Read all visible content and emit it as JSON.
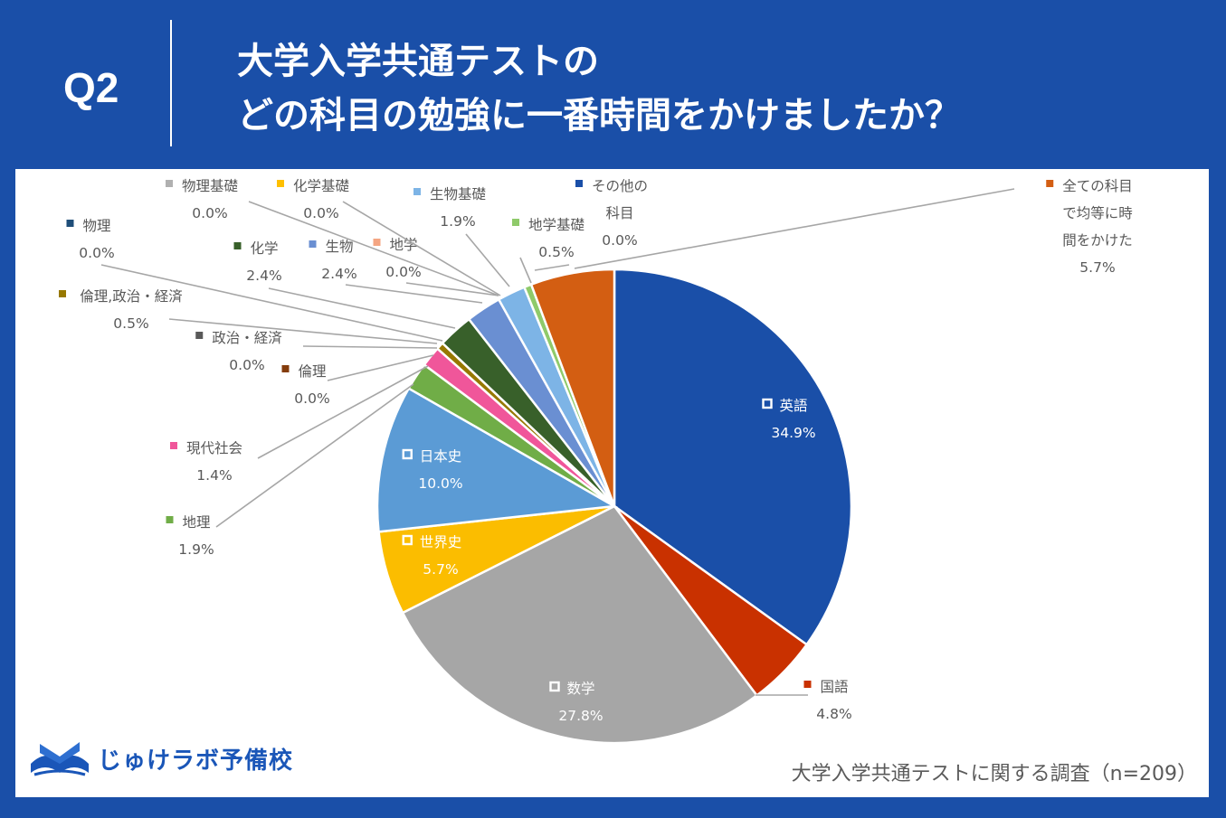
{
  "header": {
    "question_number": "Q2",
    "title_line1": "大学入学共通テストの",
    "title_line2": "どの科目の勉強に一番時間をかけましたか？"
  },
  "brand": {
    "name": "じゅけラボ予備校"
  },
  "footer": {
    "source": "大学入学共通テストに関する調査（n=209）"
  },
  "colors": {
    "background": "#1a4fa8",
    "card": "#ffffff",
    "leader_line": "#a6a6a6"
  },
  "chart_data": {
    "type": "pie",
    "title": "大学入学共通テストのどの科目の勉強に一番時間をかけましたか？",
    "n": 209,
    "unit": "%",
    "slices": [
      {
        "label": "英語",
        "value": 34.9,
        "value_label": "34.9%",
        "color": "#1a4fa8"
      },
      {
        "label": "国語",
        "value": 4.8,
        "value_label": "4.8%",
        "color": "#c93100"
      },
      {
        "label": "数学",
        "value": 27.8,
        "value_label": "27.8%",
        "color": "#a6a6a6"
      },
      {
        "label": "世界史",
        "value": 5.7,
        "value_label": "5.7%",
        "color": "#fbbd00"
      },
      {
        "label": "日本史",
        "value": 10.0,
        "value_label": "10.0%",
        "color": "#5b9bd5"
      },
      {
        "label": "地理",
        "value": 1.9,
        "value_label": "1.9%",
        "color": "#70ad47"
      },
      {
        "label": "現代社会",
        "value": 1.4,
        "value_label": "1.4%",
        "color": "#f0569a"
      },
      {
        "label": "倫理",
        "value": 0.0,
        "value_label": "0.0%",
        "color": "#843c0c"
      },
      {
        "label": "政治・経済",
        "value": 0.0,
        "value_label": "0.0%",
        "color": "#595959"
      },
      {
        "label": "倫理,政治・経済",
        "value": 0.5,
        "value_label": "0.5%",
        "color": "#977800"
      },
      {
        "label": "物理",
        "value": 0.0,
        "value_label": "0.0%",
        "color": "#1f4e79"
      },
      {
        "label": "化学",
        "value": 2.4,
        "value_label": "2.4%",
        "color": "#38602a"
      },
      {
        "label": "生物",
        "value": 2.4,
        "value_label": "2.4%",
        "color": "#6a8fd2"
      },
      {
        "label": "地学",
        "value": 0.0,
        "value_label": "0.0%",
        "color": "#f4a582"
      },
      {
        "label": "物理基礎",
        "value": 0.0,
        "value_label": "0.0%",
        "color": "#b0b0b0"
      },
      {
        "label": "化学基礎",
        "value": 0.0,
        "value_label": "0.0%",
        "color": "#ffc000"
      },
      {
        "label": "生物基礎",
        "value": 1.9,
        "value_label": "1.9%",
        "color": "#7db4e6"
      },
      {
        "label": "地学基礎",
        "value": 0.5,
        "value_label": "0.5%",
        "color": "#8fca6a"
      },
      {
        "label": "その他の科目",
        "value": 0.0,
        "value_label": "0.0%",
        "color": "#1a4fa8"
      },
      {
        "label": "全ての科目で均等に時間をかけた",
        "value": 5.7,
        "value_label": "5.7%",
        "color": "#d35e12"
      }
    ]
  }
}
